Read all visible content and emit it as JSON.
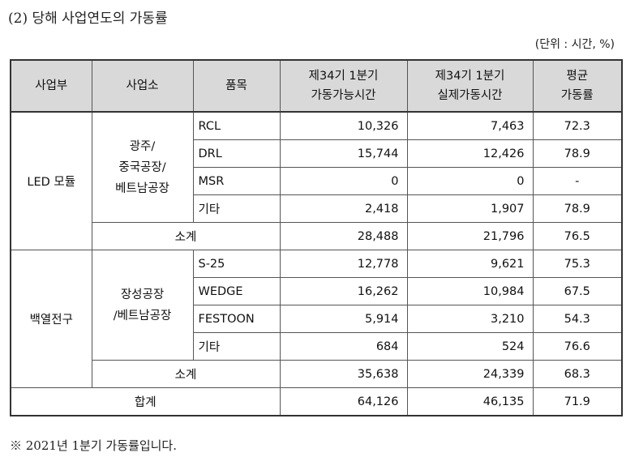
{
  "title": "(2) 당해 사업연도의 가동률",
  "unit": "(단위 : 시간, %)",
  "headers": {
    "division": "사업부",
    "site": "사업소",
    "item": "품목",
    "possible_line1": "제34기 1분기",
    "possible_line2": "가동가능시간",
    "actual_line1": "제34기 1분기",
    "actual_line2": "실제가동시간",
    "avg_line1": "평균",
    "avg_line2": "가동률"
  },
  "groups": [
    {
      "division": "LED 모듈",
      "site_lines": [
        "광주/",
        "중국공장/",
        "베트남공장"
      ],
      "rows": [
        {
          "item": "RCL",
          "possible": "10,326",
          "actual": "7,463",
          "rate": "72.3"
        },
        {
          "item": "DRL",
          "possible": "15,744",
          "actual": "12,426",
          "rate": "78.9"
        },
        {
          "item": "MSR",
          "possible": "0",
          "actual": "0",
          "rate": "-"
        },
        {
          "item": "기타",
          "possible": "2,418",
          "actual": "1,907",
          "rate": "78.9"
        }
      ],
      "subtotal": {
        "label": "소계",
        "possible": "28,488",
        "actual": "21,796",
        "rate": "76.5"
      }
    },
    {
      "division": "백열전구",
      "site_lines": [
        "장성공장",
        "/베트남공장"
      ],
      "rows": [
        {
          "item": "S-25",
          "possible": "12,778",
          "actual": "9,621",
          "rate": "75.3"
        },
        {
          "item": "WEDGE",
          "possible": "16,262",
          "actual": "10,984",
          "rate": "67.5"
        },
        {
          "item": "FESTOON",
          "possible": "5,914",
          "actual": "3,210",
          "rate": "54.3"
        },
        {
          "item": "기타",
          "possible": "684",
          "actual": "524",
          "rate": "76.6"
        }
      ],
      "subtotal": {
        "label": "소계",
        "possible": "35,638",
        "actual": "24,339",
        "rate": "68.3"
      }
    }
  ],
  "total": {
    "label": "합계",
    "possible": "64,126",
    "actual": "46,135",
    "rate": "71.9"
  },
  "footnote": "※ 2021년 1분기 가동률입니다."
}
